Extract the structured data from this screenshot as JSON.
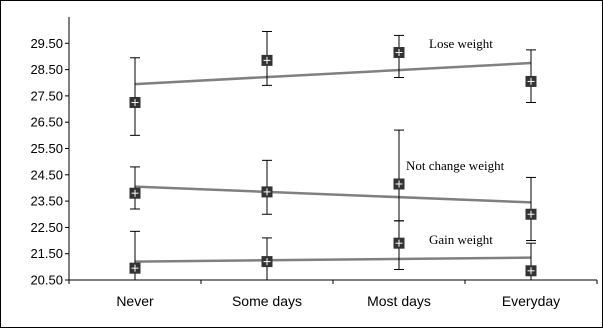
{
  "chart_data": {
    "type": "scatter",
    "title": "",
    "xlabel": "",
    "ylabel": "",
    "categories": [
      "Never",
      "Some days",
      "Most days",
      "Everyday"
    ],
    "ylim": [
      20.5,
      30.5
    ],
    "yticks": [
      "20.50",
      "21.50",
      "22.50",
      "23.50",
      "24.50",
      "25.50",
      "26.50",
      "27.50",
      "28.50",
      "29.50"
    ],
    "ytick_values": [
      20.5,
      21.5,
      22.5,
      23.5,
      24.5,
      25.5,
      26.5,
      27.5,
      28.5,
      29.5
    ],
    "grid": false,
    "legend": "none",
    "colors": {
      "trend": "#808080",
      "marker": "#333333",
      "errorbar": "#000000",
      "axis": "#000000"
    },
    "series": [
      {
        "name": "Lose weight",
        "values": [
          27.25,
          28.85,
          29.15,
          28.05
        ],
        "error_low": [
          26.0,
          27.9,
          28.2,
          27.25
        ],
        "error_high": [
          28.95,
          29.95,
          29.8,
          29.25
        ],
        "trend": [
          27.95,
          28.75
        ]
      },
      {
        "name": "Not change weight",
        "values": [
          23.8,
          23.85,
          24.15,
          23.0
        ],
        "error_low": [
          23.2,
          23.0,
          22.75,
          22.0
        ],
        "error_high": [
          24.8,
          25.05,
          26.2,
          24.4
        ],
        "trend": [
          24.05,
          23.45
        ]
      },
      {
        "name": "Gain weight",
        "values": [
          20.95,
          21.2,
          21.9,
          20.85
        ],
        "error_low": [
          20.5,
          20.5,
          20.9,
          20.5
        ],
        "error_high": [
          22.35,
          22.1,
          22.75,
          21.9
        ],
        "trend": [
          21.2,
          21.35
        ]
      }
    ]
  }
}
